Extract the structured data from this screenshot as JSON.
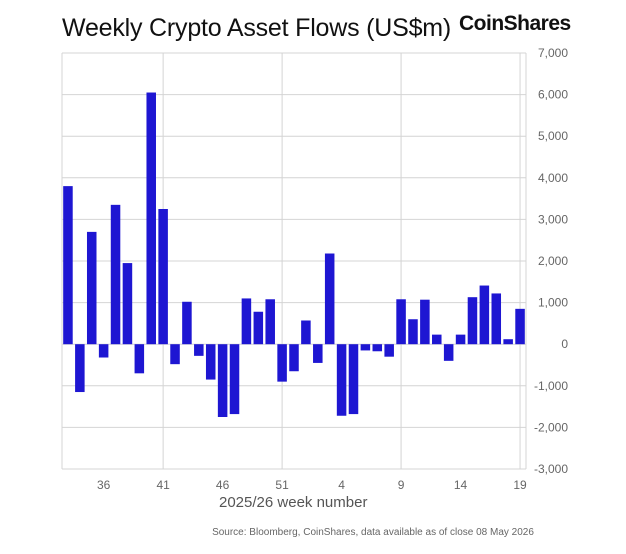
{
  "header": {
    "title": "Weekly Crypto Asset Flows (US$m)",
    "brand": "CoinShares"
  },
  "footer": {
    "source": "Source: Bloomberg, CoinShares, data available as of close 08 May 2026"
  },
  "colors": {
    "bar": "#1e16d2",
    "grid": "#d4d4d4",
    "tick_text": "#666666"
  },
  "chart_data": {
    "type": "bar",
    "title": "Weekly Crypto Asset Flows (US$m)",
    "xlabel": "2025/26 week number",
    "ylabel": "",
    "ylim": [
      -3000,
      7000
    ],
    "yticks": [
      7000,
      6000,
      5000,
      4000,
      3000,
      2000,
      1000,
      0,
      -1000,
      -2000,
      -3000
    ],
    "ytick_labels": [
      "7,000",
      "6,000",
      "5,000",
      "4,000",
      "3,000",
      "2,000",
      "1,000",
      "0",
      "-1,000",
      "-2,000",
      "-3,000"
    ],
    "xtick_labels": [
      "36",
      "41",
      "46",
      "51",
      "4",
      "9",
      "14",
      "19"
    ],
    "vertical_gridlines_at": [
      "41",
      "51",
      "9",
      "19"
    ],
    "grid": true,
    "y_axis_side": "right",
    "categories": [
      "33",
      "34",
      "35",
      "36",
      "37",
      "38",
      "39",
      "40",
      "41",
      "42",
      "43",
      "44",
      "45",
      "46",
      "47",
      "48",
      "49",
      "50",
      "51",
      "52",
      "1",
      "2",
      "3",
      "4",
      "5",
      "6",
      "7",
      "8",
      "9",
      "10",
      "11",
      "12",
      "13",
      "14",
      "15",
      "16",
      "17",
      "18",
      "19"
    ],
    "values": [
      3800,
      -1150,
      2700,
      -320,
      3350,
      1950,
      -700,
      6050,
      3250,
      -480,
      1020,
      -280,
      -850,
      -1750,
      -1680,
      1100,
      780,
      1080,
      -900,
      -650,
      570,
      -450,
      2180,
      -1720,
      -1680,
      -150,
      -170,
      -300,
      1080,
      600,
      1070,
      230,
      -400,
      230,
      1130,
      1410,
      1220,
      120,
      850
    ]
  }
}
